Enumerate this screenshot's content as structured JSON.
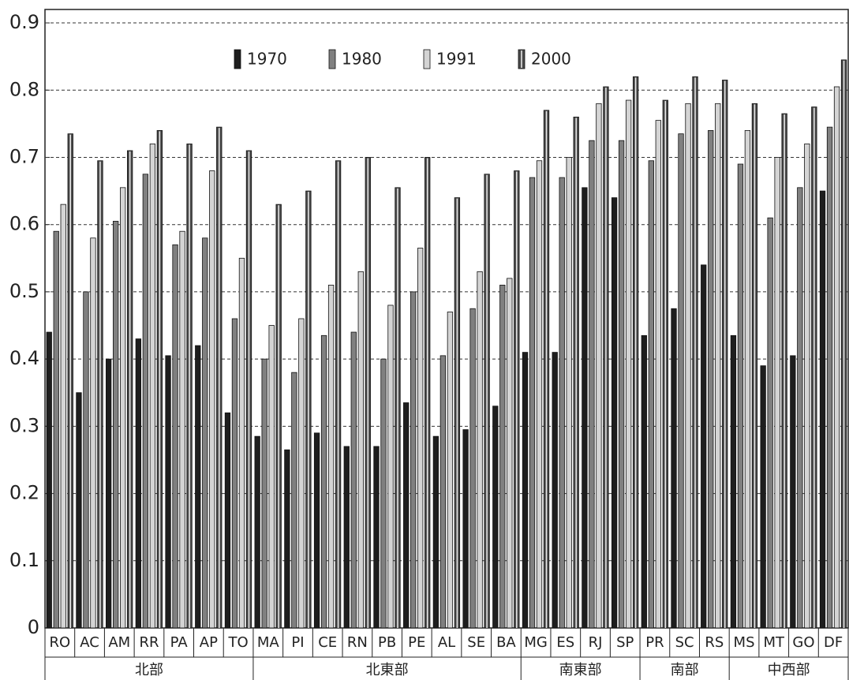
{
  "chart_data": {
    "type": "bar",
    "groups": [
      {
        "name": "北部",
        "categories": [
          "RO",
          "AC",
          "AM",
          "RR",
          "PA",
          "AP",
          "TO"
        ]
      },
      {
        "name": "北東部",
        "categories": [
          "MA",
          "PI",
          "CE",
          "RN",
          "PB",
          "PE",
          "AL",
          "SE",
          "BA"
        ]
      },
      {
        "name": "南東部",
        "categories": [
          "MG",
          "ES",
          "RJ",
          "SP"
        ]
      },
      {
        "name": "南部",
        "categories": [
          "PR",
          "SC",
          "RS"
        ]
      },
      {
        "name": "中西部",
        "categories": [
          "MS",
          "MT",
          "GO",
          "DF"
        ]
      }
    ],
    "series": [
      {
        "name": "1970",
        "color": "#1e1e1e",
        "values": [
          0.44,
          0.35,
          0.4,
          0.43,
          0.405,
          0.42,
          0.32,
          0.285,
          0.265,
          0.29,
          0.27,
          0.27,
          0.335,
          0.285,
          0.295,
          0.33,
          0.41,
          0.41,
          0.655,
          0.64,
          0.435,
          0.475,
          0.54,
          0.435,
          0.39,
          0.405,
          0.65
        ]
      },
      {
        "name": "1980",
        "color": "#808080",
        "values": [
          0.59,
          0.5,
          0.605,
          0.675,
          0.57,
          0.58,
          0.46,
          0.4,
          0.38,
          0.435,
          0.44,
          0.4,
          0.5,
          0.405,
          0.475,
          0.51,
          0.67,
          0.67,
          0.725,
          0.725,
          0.695,
          0.735,
          0.74,
          0.69,
          0.61,
          0.655,
          0.745
        ]
      },
      {
        "name": "1991",
        "color": "#d4d4d4",
        "values": [
          0.63,
          0.58,
          0.655,
          0.72,
          0.59,
          0.68,
          0.55,
          0.45,
          0.46,
          0.51,
          0.53,
          0.48,
          0.565,
          0.47,
          0.53,
          0.52,
          0.695,
          0.7,
          0.78,
          0.785,
          0.755,
          0.78,
          0.78,
          0.74,
          0.7,
          0.72,
          0.805
        ]
      },
      {
        "name": "2000",
        "color": "#4a4a4a",
        "values": [
          0.735,
          0.695,
          0.71,
          0.74,
          0.72,
          0.745,
          0.71,
          0.63,
          0.65,
          0.695,
          0.7,
          0.655,
          0.7,
          0.64,
          0.675,
          0.68,
          0.77,
          0.76,
          0.805,
          0.82,
          0.785,
          0.82,
          0.815,
          0.78,
          0.765,
          0.775,
          0.845
        ]
      }
    ],
    "ylim": [
      0,
      0.92
    ],
    "yticks": [
      0,
      0.1,
      0.2,
      0.3,
      0.4,
      0.5,
      0.6,
      0.7,
      0.8,
      0.9
    ],
    "grid": true,
    "legend": "top"
  }
}
